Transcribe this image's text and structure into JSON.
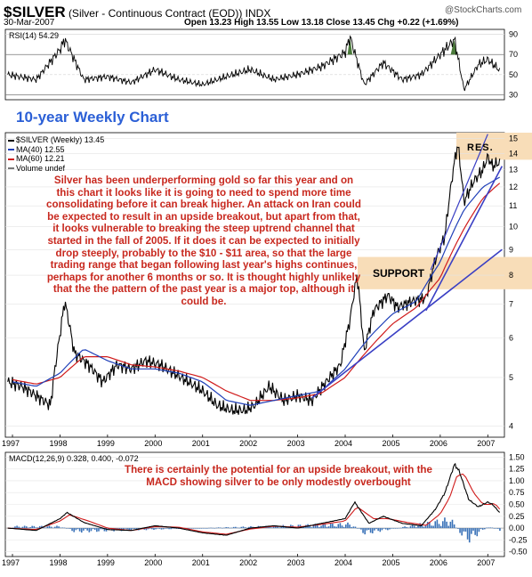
{
  "header": {
    "symbol": "$SILVER",
    "description": "(Silver - Continuous Contract (EOD)) INDX",
    "date": "30-Mar-2007",
    "ohlc": "Open 13.23  High 13.55  Low 13.18  Close 13.45  Chg +0.22 (+1.69%)",
    "watermark": "@StockCharts.com"
  },
  "rsi_panel": {
    "label": "RSI(14) 54.29",
    "ticks": [
      "90",
      "70",
      "50",
      "30"
    ]
  },
  "price_panel": {
    "chart_title": "10-year Weekly Chart",
    "legend": [
      "$SILVER (Weekly) 13.45",
      "MA(40) 12.55",
      "MA(60) 12.21",
      "Volume undef"
    ],
    "y_ticks": [
      "15",
      "14",
      "13",
      "12",
      "11",
      "10",
      "9",
      "8",
      "7",
      "6",
      "5",
      "4"
    ],
    "res_label": "RES.",
    "support_label": "SUPPORT",
    "commentary": "Silver has been underperforming gold so far this year and on this chart it looks like it is going to need to spend more time consolidating before it can break higher. An attack on Iran could be expected to result in an upside breakout, but apart from that, it looks vulnerable to breaking the steep uptrend channel that started in the fall of 2005. If it does it can be expected to initially drop steeply, probably to the $10 - $11 area, so that the large trading range that began following last year's highs continues, perhaps for another 6 months or so. It is thought highly unlikely that the the pattern of the past year is a major top, although it could be."
  },
  "macd_panel": {
    "label": "MACD(12,26,9) 0.328, 0.400, -0.072",
    "y_ticks": [
      "1.50",
      "1.25",
      "1.00",
      "0.75",
      "0.50",
      "0.25",
      "0.00",
      "-0.25",
      "-0.50"
    ],
    "commentary": "There is certainly the potential for an upside breakout, with the MACD showing silver to be only modestly overbought"
  },
  "x_axis": {
    "years": [
      "1997",
      "1998",
      "1999",
      "2000",
      "2001",
      "2002",
      "2003",
      "2004",
      "2005",
      "2006",
      "2007"
    ]
  },
  "colors": {
    "price": "#000000",
    "ma40": "#1f3fb8",
    "ma60": "#d01c1c",
    "trendline": "#3a3fc4",
    "zone": "#f8ddb8",
    "rsi_fill": "#4a7a3a",
    "macd_hist": "#3a72b8",
    "note": "#c8281e",
    "title": "#2b5fd6"
  },
  "chart_data": [
    {
      "type": "line",
      "name": "price",
      "x": [
        1996.9,
        1997.2,
        1997.5,
        1997.8,
        1998.0,
        1998.1,
        1998.3,
        1998.6,
        1998.9,
        1999.2,
        1999.5,
        1999.8,
        2000.1,
        2000.4,
        2000.7,
        2001.0,
        2001.3,
        2001.6,
        2001.9,
        2002.1,
        2002.4,
        2002.7,
        2003.0,
        2003.3,
        2003.6,
        2003.9,
        2004.1,
        2004.25,
        2004.4,
        2004.6,
        2004.9,
        2005.1,
        2005.4,
        2005.7,
        2005.9,
        2006.1,
        2006.3,
        2006.37,
        2006.5,
        2006.7,
        2006.9,
        2007.0,
        2007.1,
        2007.25
      ],
      "values": [
        4.9,
        4.8,
        4.6,
        4.4,
        6.1,
        7.1,
        5.6,
        5.3,
        4.9,
        5.3,
        5.2,
        5.4,
        5.3,
        5.1,
        4.9,
        4.7,
        4.4,
        4.3,
        4.3,
        4.4,
        4.8,
        4.5,
        4.6,
        4.5,
        4.9,
        5.3,
        6.5,
        8.0,
        5.6,
        6.8,
        7.3,
        6.9,
        7.1,
        7.2,
        8.6,
        9.6,
        13.5,
        14.6,
        11.2,
        12.3,
        13.0,
        13.8,
        13.2,
        13.45
      ],
      "ylim": [
        3.8,
        15.4
      ],
      "log_scale": true
    },
    {
      "type": "line",
      "name": "MA(40)",
      "x": [
        1997.0,
        1997.5,
        1998.0,
        1998.5,
        1999.0,
        1999.5,
        2000.0,
        2000.5,
        2001.0,
        2001.5,
        2002.0,
        2002.5,
        2003.0,
        2003.5,
        2004.0,
        2004.5,
        2005.0,
        2005.5,
        2006.0,
        2006.5,
        2006.9,
        2007.25
      ],
      "values": [
        4.9,
        4.8,
        5.1,
        5.7,
        5.4,
        5.2,
        5.2,
        5.1,
        4.9,
        4.5,
        4.4,
        4.5,
        4.6,
        4.7,
        5.2,
        6.0,
        6.7,
        7.1,
        8.5,
        10.8,
        12.0,
        12.55
      ]
    },
    {
      "type": "line",
      "name": "MA(60)",
      "x": [
        1997.0,
        1997.5,
        1998.0,
        1998.5,
        1999.0,
        1999.5,
        2000.0,
        2000.5,
        2001.0,
        2001.5,
        2002.0,
        2002.5,
        2003.0,
        2003.5,
        2004.0,
        2004.5,
        2005.0,
        2005.5,
        2006.0,
        2006.5,
        2006.9,
        2007.25
      ],
      "values": [
        4.95,
        4.85,
        5.0,
        5.5,
        5.5,
        5.3,
        5.25,
        5.15,
        5.0,
        4.7,
        4.5,
        4.5,
        4.55,
        4.65,
        5.0,
        5.7,
        6.4,
        6.9,
        7.9,
        9.9,
        11.4,
        12.21
      ]
    },
    {
      "type": "line",
      "name": "RSI(14)",
      "x": [
        1996.9,
        1997.5,
        1998.0,
        1998.1,
        1998.5,
        1999.0,
        1999.5,
        2000.0,
        2000.5,
        2001.0,
        2001.5,
        2002.0,
        2002.5,
        2003.0,
        2003.5,
        2004.0,
        2004.1,
        2004.4,
        2004.8,
        2005.2,
        2005.6,
        2005.9,
        2006.2,
        2006.3,
        2006.5,
        2006.8,
        2007.0,
        2007.25
      ],
      "values": [
        50,
        45,
        75,
        85,
        45,
        48,
        42,
        55,
        45,
        40,
        48,
        55,
        45,
        50,
        58,
        72,
        88,
        40,
        62,
        45,
        50,
        65,
        80,
        85,
        35,
        60,
        65,
        54.29
      ],
      "ylim": [
        25,
        95
      ]
    },
    {
      "type": "line",
      "name": "MACD",
      "x": [
        1996.9,
        1997.5,
        1998.0,
        1998.15,
        1998.5,
        1999.0,
        1999.5,
        2000.0,
        2000.5,
        2001.0,
        2001.5,
        2002.0,
        2002.5,
        2003.0,
        2003.5,
        2004.0,
        2004.2,
        2004.5,
        2004.8,
        2005.2,
        2005.6,
        2005.9,
        2006.1,
        2006.3,
        2006.4,
        2006.6,
        2006.8,
        2007.0,
        2007.1,
        2007.25
      ],
      "values": [
        0.0,
        -0.05,
        0.2,
        0.33,
        0.12,
        -0.03,
        -0.05,
        0.05,
        0.0,
        -0.1,
        -0.15,
        0.0,
        0.05,
        0.0,
        0.1,
        0.2,
        0.55,
        0.1,
        0.25,
        0.1,
        0.05,
        0.4,
        0.75,
        1.35,
        1.2,
        0.6,
        0.45,
        0.55,
        0.5,
        0.328
      ],
      "ylim": [
        -0.6,
        1.6
      ]
    },
    {
      "type": "line",
      "name": "signal",
      "x": [
        1996.9,
        1997.5,
        1998.0,
        1998.2,
        1998.6,
        1999.0,
        1999.5,
        2000.0,
        2000.5,
        2001.0,
        2001.5,
        2002.0,
        2002.5,
        2003.0,
        2003.5,
        2004.0,
        2004.25,
        2004.6,
        2004.9,
        2005.3,
        2005.7,
        2006.0,
        2006.2,
        2006.35,
        2006.5,
        2006.7,
        2006.9,
        2007.05,
        2007.15,
        2007.25
      ],
      "values": [
        0.0,
        -0.03,
        0.15,
        0.28,
        0.15,
        0.0,
        -0.05,
        0.03,
        0.02,
        -0.08,
        -0.13,
        -0.02,
        0.04,
        0.02,
        0.08,
        0.15,
        0.45,
        0.2,
        0.2,
        0.12,
        0.06,
        0.3,
        0.65,
        1.1,
        1.15,
        0.75,
        0.5,
        0.5,
        0.52,
        0.4
      ]
    },
    {
      "type": "bar",
      "name": "histogram",
      "x": [
        1998.0,
        1998.3,
        2004.1,
        2004.4,
        2006.2,
        2006.45,
        2006.6,
        2007.0,
        2007.25
      ],
      "values": [
        0.05,
        -0.1,
        0.12,
        -0.15,
        0.25,
        -0.2,
        -0.32,
        0.05,
        -0.072
      ]
    }
  ]
}
